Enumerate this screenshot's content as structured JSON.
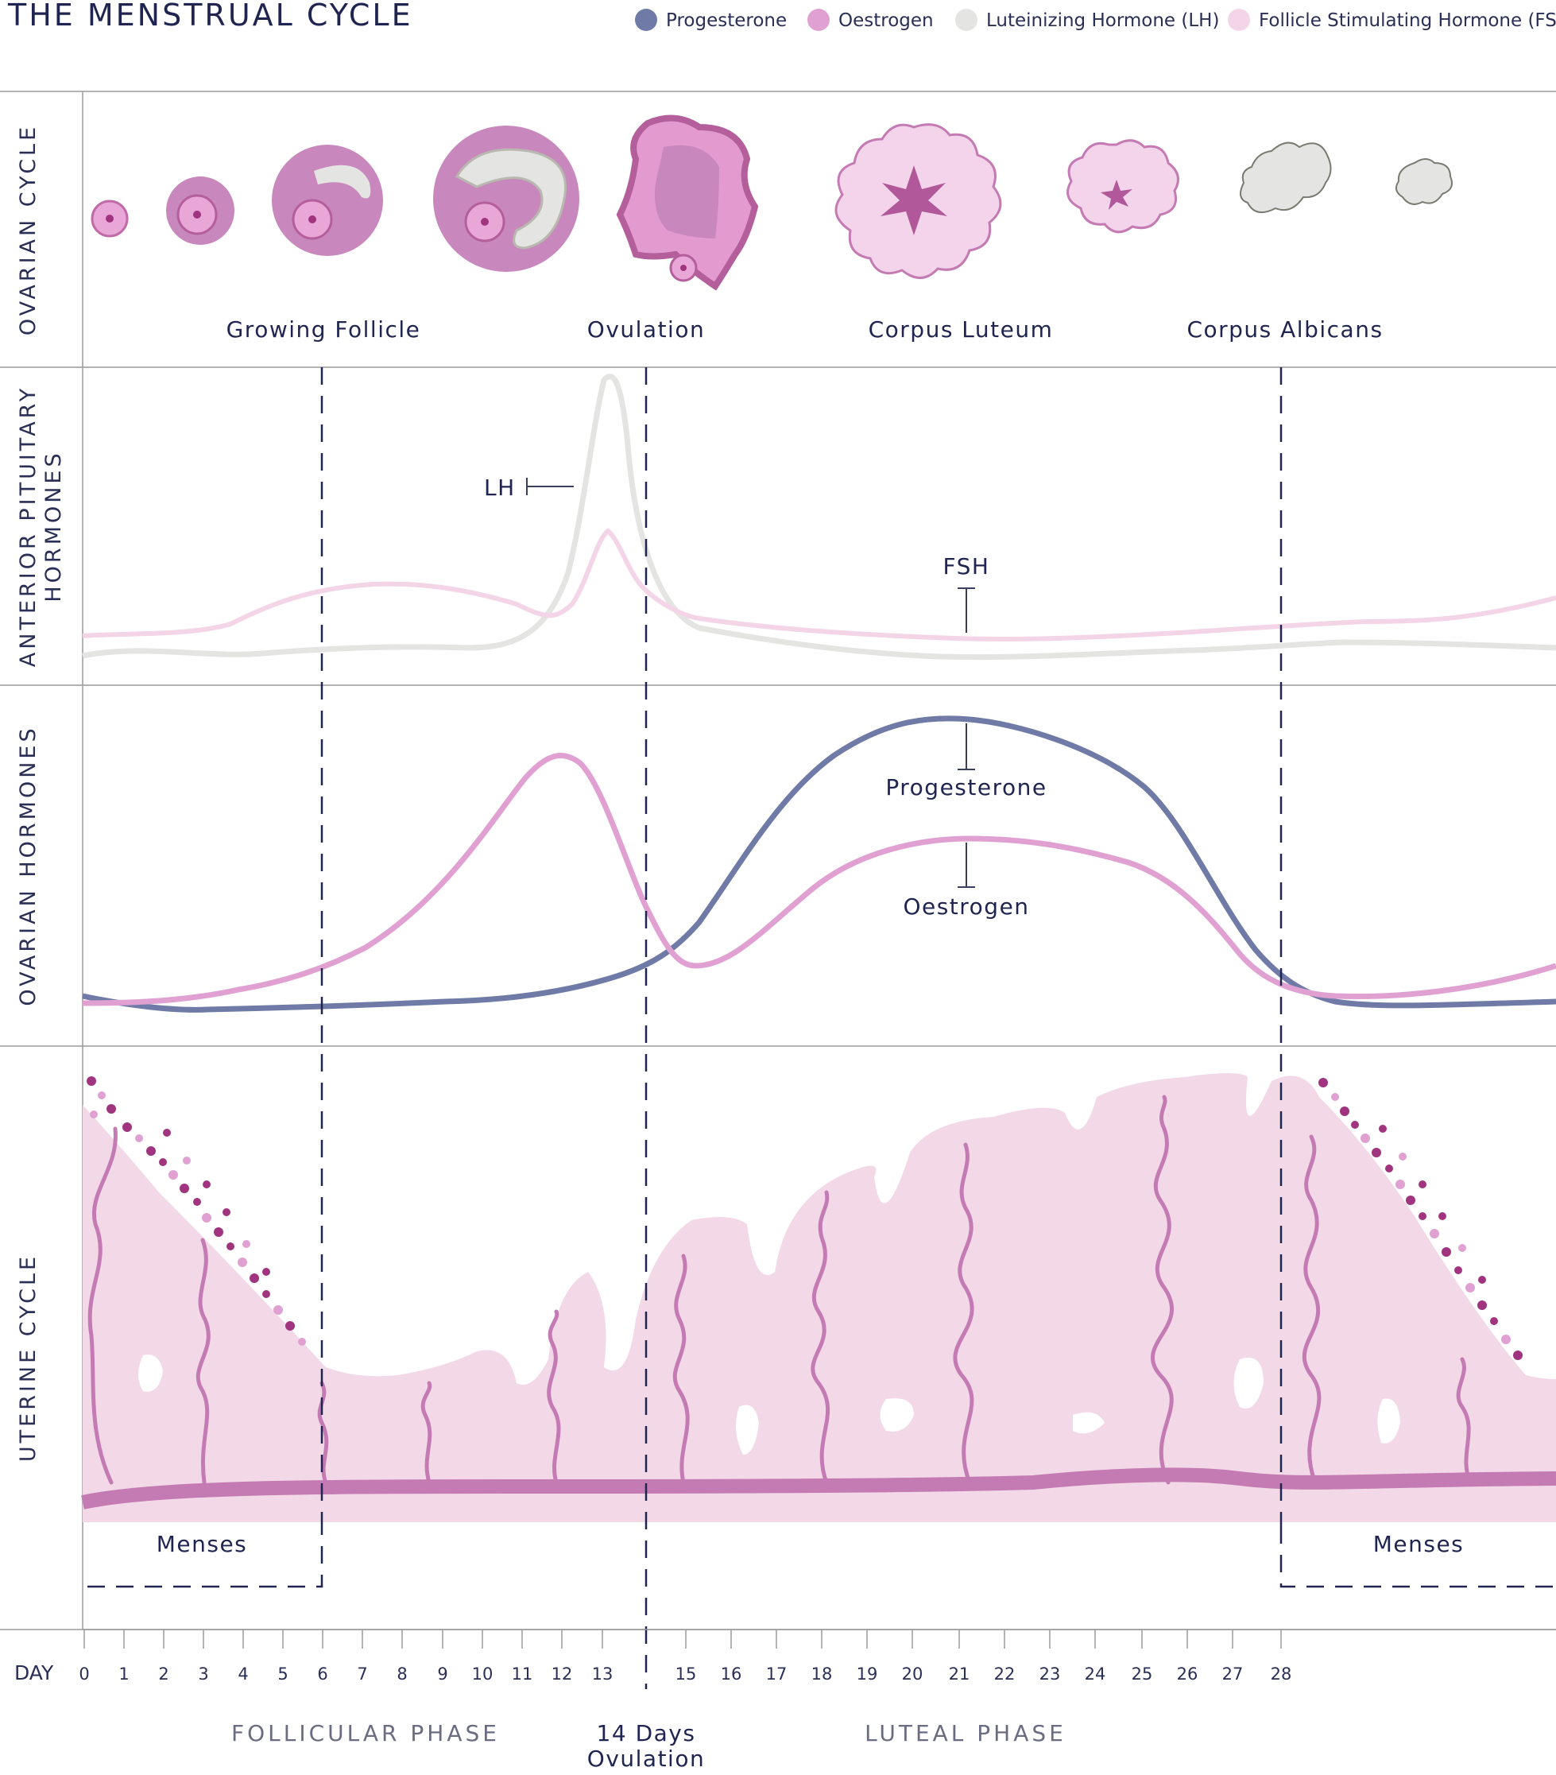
{
  "title": "THE MENSTRUAL CYCLE",
  "colors": {
    "progesterone": "#6f7aa6",
    "oestrogen": "#e0a1d2",
    "lh": "#e4e5e2",
    "fsh": "#f4d5e8",
    "tissue": "#f3d9e8",
    "artery": "#c47bb4",
    "navy": "#1f2550"
  },
  "legend": [
    {
      "label": "Progesterone",
      "color": "#6f7aa6"
    },
    {
      "label": "Oestrogen",
      "color": "#e0a1d2"
    },
    {
      "label": "Luteinizing Hormone (LH)",
      "color": "#e4e5e2"
    },
    {
      "label": "Follicle Stimulating Hormone (FSH)",
      "color": "#f4d5e8"
    }
  ],
  "rows": {
    "ovarian_cycle": "OVARIAN CYCLE",
    "pituitary_line1": "ANTERIOR PITUITARY",
    "pituitary_line2": "HORMONES",
    "ovarian_hormones": "OVARIAN HORMONES",
    "uterine_cycle": "UTERINE CYCLE"
  },
  "stages": [
    "Growing Follicle",
    "Ovulation",
    "Corpus Luteum",
    "Corpus Albicans"
  ],
  "labels": {
    "lh": "LH",
    "fsh": "FSH",
    "progesterone": "Progesterone",
    "oestrogen": "Oestrogen",
    "menses_left": "Menses",
    "menses_right": "Menses"
  },
  "axis": {
    "label": "DAY",
    "days": [
      "0",
      "1",
      "2",
      "3",
      "4",
      "5",
      "6",
      "7",
      "8",
      "9",
      "10",
      "11",
      "12",
      "13",
      "15",
      "16",
      "17",
      "18",
      "19",
      "20",
      "21",
      "22",
      "23",
      "24",
      "25",
      "26",
      "27",
      "28"
    ]
  },
  "phases": {
    "follicular": "FOLLICULAR PHASE",
    "ovulation_line1": "14 Days",
    "ovulation_line2": "Ovulation",
    "luteal": "LUTEAL PHASE"
  }
}
